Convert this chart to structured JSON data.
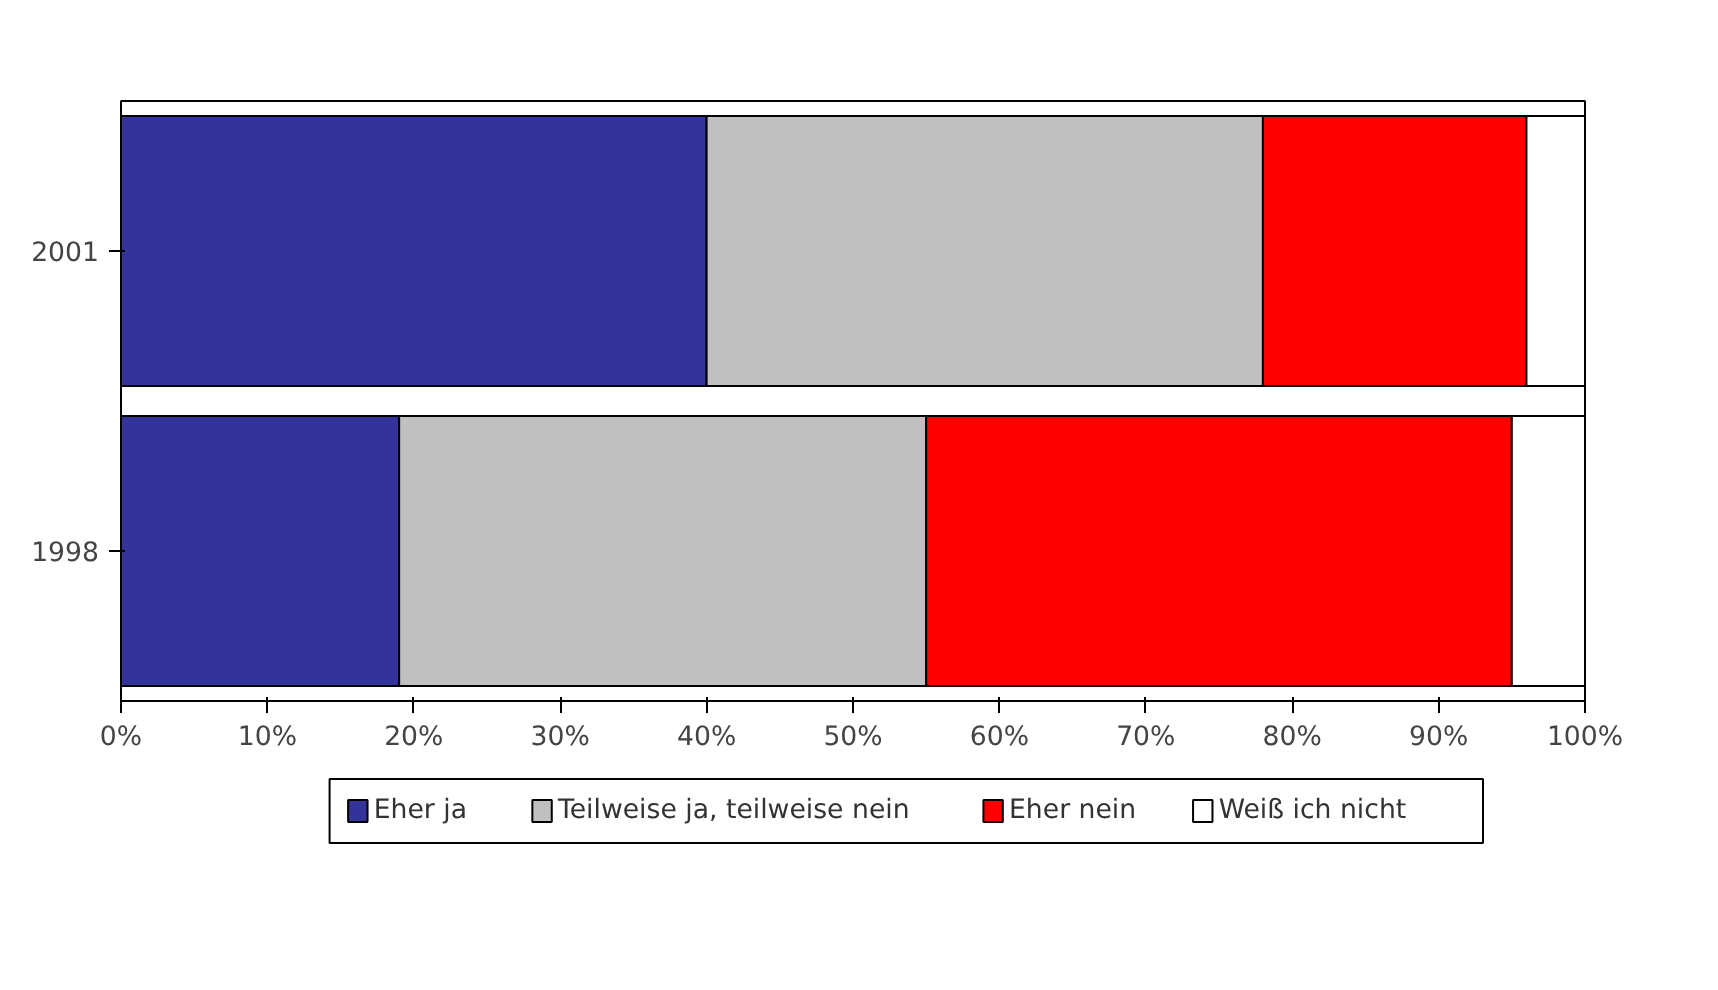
{
  "chart_data": {
    "type": "bar",
    "orientation": "horizontal",
    "stacked": true,
    "categories": [
      "2001",
      "1998"
    ],
    "series": [
      {
        "name": "Eher ja",
        "color": "#333399",
        "values": [
          40,
          19
        ]
      },
      {
        "name": "Teilweise ja, teilweise nein",
        "color": "#c0c0c0",
        "values": [
          38,
          36
        ]
      },
      {
        "name": "Eher nein",
        "color": "#ff0000",
        "values": [
          18,
          40
        ]
      },
      {
        "name": "Weiß ich nicht",
        "color": "#ffffff",
        "values": [
          4,
          5
        ]
      }
    ],
    "xlim": [
      0,
      100
    ],
    "xticks": [
      {
        "value": 0,
        "label": "0%"
      },
      {
        "value": 10,
        "label": "10%"
      },
      {
        "value": 20,
        "label": "20%"
      },
      {
        "value": 30,
        "label": "30%"
      },
      {
        "value": 40,
        "label": "40%"
      },
      {
        "value": 50,
        "label": "50%"
      },
      {
        "value": 60,
        "label": "60%"
      },
      {
        "value": 70,
        "label": "70%"
      },
      {
        "value": 80,
        "label": "80%"
      },
      {
        "value": 90,
        "label": "90%"
      },
      {
        "value": 100,
        "label": "100%"
      }
    ],
    "grid": false,
    "legend": "bottom"
  }
}
